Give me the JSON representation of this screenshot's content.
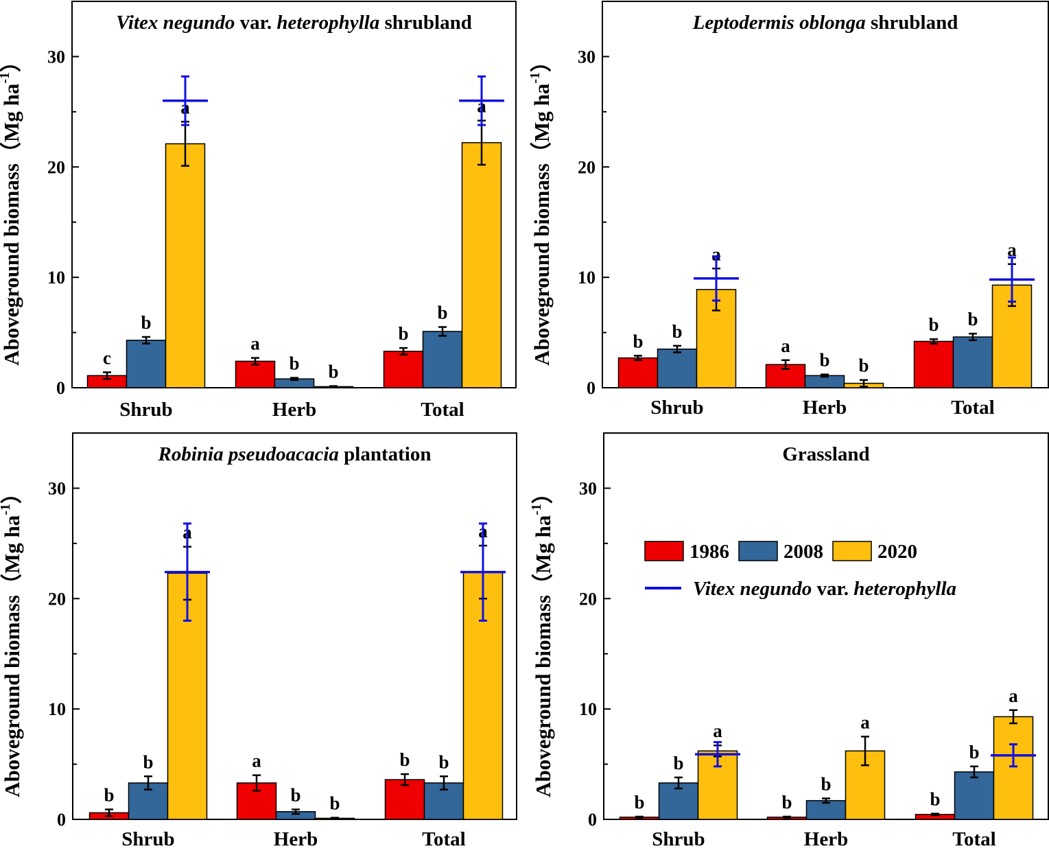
{
  "figure": {
    "ylabel": "Aboveground biomass",
    "ylabel_unit_prefix": "（Mg ha",
    "ylabel_unit_sup": "-1",
    "ylabel_unit_suffix": "）",
    "legend": {
      "entries": [
        {
          "name": "1986",
          "color": "#ee0000"
        },
        {
          "name": "2008",
          "color": "#336699"
        },
        {
          "name": "2020",
          "color": "#ffbf0f"
        }
      ],
      "line_entry_italic": "Vitex negundo",
      "line_entry_plain": " var. ",
      "line_entry_italic2": "heterophylla",
      "line_color": "#1010e0"
    }
  },
  "chart_data": [
    {
      "type": "bar",
      "title_parts": [
        {
          "text": "Vitex negundo",
          "italic": true
        },
        {
          "text": " var. ",
          "italic": false
        },
        {
          "text": "heterophylla",
          "italic": true
        },
        {
          "text": " shrubland",
          "italic": false
        }
      ],
      "categories": [
        "Shrub",
        "Herb",
        "Total"
      ],
      "ylim": [
        0,
        35
      ],
      "yticks": [
        0,
        10,
        20,
        30
      ],
      "series": [
        {
          "name": "1986",
          "values": [
            1.1,
            2.4,
            3.3
          ],
          "errors": [
            0.3,
            0.3,
            0.3
          ],
          "letters": [
            "c",
            "a",
            "b"
          ]
        },
        {
          "name": "2008",
          "values": [
            4.3,
            0.8,
            5.1
          ],
          "errors": [
            0.3,
            0.1,
            0.4
          ],
          "letters": [
            "b",
            "b",
            "b"
          ]
        },
        {
          "name": "2020",
          "values": [
            22.1,
            0.1,
            22.2
          ],
          "errors": [
            2.0,
            0.05,
            2.0
          ],
          "letters": [
            "a",
            "b",
            "a"
          ]
        }
      ],
      "vitex": {
        "values": [
          26.0,
          null,
          26.0
        ],
        "errors": [
          2.2,
          null,
          2.2
        ]
      }
    },
    {
      "type": "bar",
      "title_parts": [
        {
          "text": "Leptodermis oblonga",
          "italic": true
        },
        {
          "text": " shrubland",
          "italic": false
        }
      ],
      "categories": [
        "Shrub",
        "Herb",
        "Total"
      ],
      "ylim": [
        0,
        35
      ],
      "yticks": [
        0,
        10,
        20,
        30
      ],
      "series": [
        {
          "name": "1986",
          "values": [
            2.7,
            2.1,
            4.2
          ],
          "errors": [
            0.2,
            0.4,
            0.2
          ],
          "letters": [
            "b",
            "a",
            "b"
          ]
        },
        {
          "name": "2008",
          "values": [
            3.5,
            1.1,
            4.6
          ],
          "errors": [
            0.3,
            0.1,
            0.3
          ],
          "letters": [
            "b",
            "b",
            "b"
          ]
        },
        {
          "name": "2020",
          "values": [
            8.9,
            0.4,
            9.3
          ],
          "errors": [
            1.9,
            0.3,
            1.9
          ],
          "letters": [
            "a",
            "b",
            "a"
          ]
        }
      ],
      "vitex": {
        "values": [
          9.9,
          null,
          9.8
        ],
        "errors": [
          2.0,
          null,
          2.0
        ]
      }
    },
    {
      "type": "bar",
      "title_parts": [
        {
          "text": "Robinia pseudoacacia",
          "italic": true
        },
        {
          "text": " plantation",
          "italic": false
        }
      ],
      "categories": [
        "Shrub",
        "Herb",
        "Total"
      ],
      "ylim": [
        0,
        35
      ],
      "yticks": [
        0,
        10,
        20,
        30
      ],
      "series": [
        {
          "name": "1986",
          "values": [
            0.6,
            3.3,
            3.6
          ],
          "errors": [
            0.3,
            0.7,
            0.5
          ],
          "letters": [
            "b",
            "a",
            "b"
          ]
        },
        {
          "name": "2008",
          "values": [
            3.3,
            0.7,
            3.3
          ],
          "errors": [
            0.6,
            0.2,
            0.6
          ],
          "letters": [
            "b",
            "b",
            "b"
          ]
        },
        {
          "name": "2020",
          "values": [
            22.3,
            0.1,
            22.4
          ],
          "errors": [
            2.4,
            0.05,
            2.4
          ],
          "letters": [
            "a",
            "b",
            "a"
          ]
        }
      ],
      "vitex": {
        "values": [
          22.4,
          null,
          22.4
        ],
        "errors": [
          4.4,
          null,
          4.4
        ]
      }
    },
    {
      "type": "bar",
      "title_parts": [
        {
          "text": "Grassland",
          "italic": false
        }
      ],
      "categories": [
        "Shrub",
        "Herb",
        "Total"
      ],
      "ylim": [
        0,
        35
      ],
      "yticks": [
        0,
        10,
        20,
        30
      ],
      "series": [
        {
          "name": "1986",
          "values": [
            0.2,
            0.2,
            0.45
          ],
          "errors": [
            0.05,
            0.05,
            0.07
          ],
          "letters": [
            "b",
            "b",
            "b"
          ]
        },
        {
          "name": "2008",
          "values": [
            3.3,
            1.7,
            4.3
          ],
          "errors": [
            0.5,
            0.2,
            0.5
          ],
          "letters": [
            "b",
            "b",
            "b"
          ]
        },
        {
          "name": "2020",
          "values": [
            6.2,
            6.2,
            9.3
          ],
          "errors": [
            0.5,
            1.3,
            0.6
          ],
          "letters": [
            "a",
            "a",
            "a"
          ]
        }
      ],
      "vitex": {
        "values": [
          5.9,
          null,
          5.8
        ],
        "errors": [
          1.1,
          null,
          1.0
        ]
      }
    }
  ]
}
